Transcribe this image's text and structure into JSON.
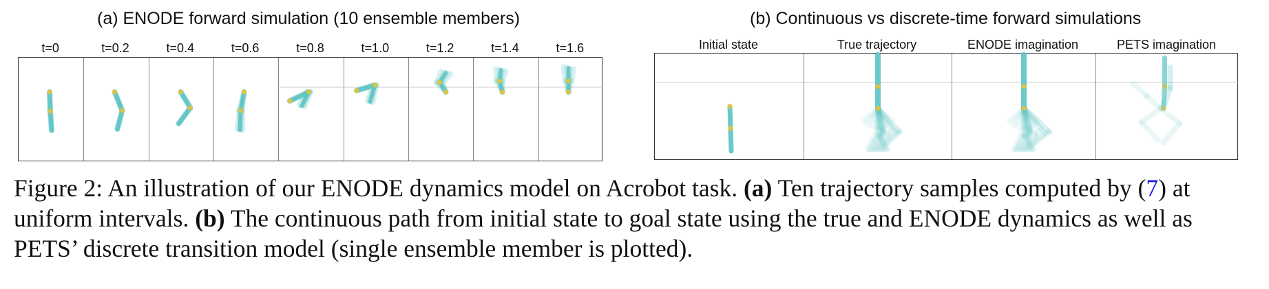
{
  "colors": {
    "link": "#1a3cd6",
    "joint": "#d8c44a",
    "guide_line": "#cccccc",
    "frame_border": "#333333",
    "divider": "#888888"
  },
  "panel_a": {
    "title": "(a) ENODE forward simulation (10 ensemble members)",
    "frames": [
      {
        "label": "t=0"
      },
      {
        "label": "t=0.2"
      },
      {
        "label": "t=0.4"
      },
      {
        "label": "t=0.6"
      },
      {
        "label": "t=0.8"
      },
      {
        "label": "t=1.0"
      },
      {
        "label": "t=1.2"
      },
      {
        "label": "t=1.4"
      },
      {
        "label": "t=1.6"
      }
    ]
  },
  "panel_b": {
    "title": "(b) Continuous vs discrete-time forward simulations",
    "frames": [
      {
        "label": "Initial state"
      },
      {
        "label": "True trajectory"
      },
      {
        "label": "ENODE imagination"
      },
      {
        "label": "PETS imagination"
      }
    ]
  },
  "caption": {
    "figure_label": "Figure 2:",
    "intro": "An illustration of our ENODE dynamics model on Acrobot task.",
    "part_a_label": "(a)",
    "part_a_text": "Ten trajectory samples computed by (",
    "part_a_ref": "7",
    "part_a_text_end": ") at uniform intervals.",
    "part_b_label": "(b)",
    "part_b_text": "The continuous path from initial state to goal state using the true and ENODE dynamics as well as PETS’ discrete transition model (single ensemble member is plotted)."
  }
}
